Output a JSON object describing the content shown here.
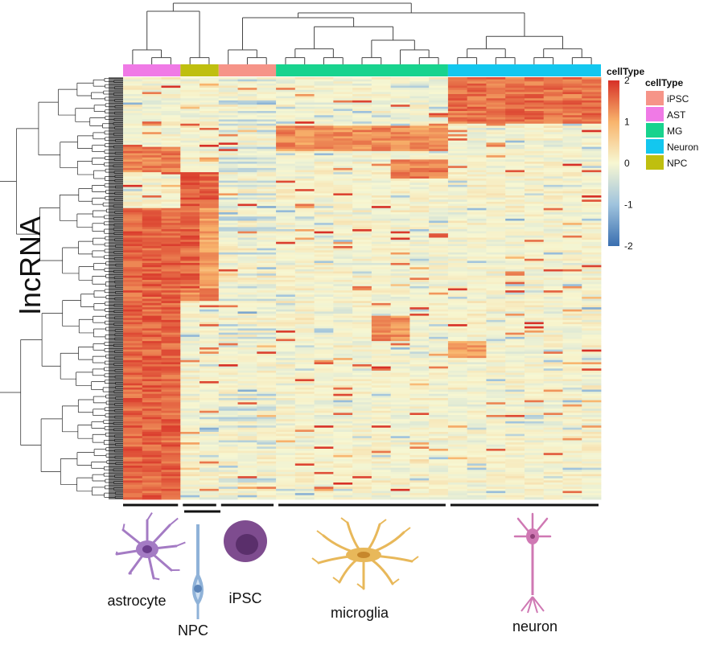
{
  "chart_data": {
    "type": "heatmap",
    "ylabel": "lncRNA",
    "color_scale": {
      "title": "cellType",
      "ticks": [
        "2",
        "1",
        "0",
        "-1",
        "-2"
      ],
      "range": [
        -2,
        2
      ],
      "colors": [
        "#3a6fb0",
        "#9fc3dd",
        "#f7f7d2",
        "#f8b46c",
        "#d73027"
      ]
    },
    "annotation": {
      "title": "cellType",
      "categories": [
        {
          "name": "iPSC",
          "color": "#f69488"
        },
        {
          "name": "AST",
          "color": "#f07ae6"
        },
        {
          "name": "MG",
          "color": "#18d38e"
        },
        {
          "name": "Neuron",
          "color": "#13c7ef"
        },
        {
          "name": "NPC",
          "color": "#bfbf0f"
        }
      ]
    },
    "column_groups": [
      {
        "type": "AST",
        "n": 3
      },
      {
        "type": "NPC",
        "n": 2
      },
      {
        "type": "iPSC",
        "n": 3
      },
      {
        "type": "MG",
        "n": 9
      },
      {
        "type": "Neuron",
        "n": 8
      }
    ],
    "cell_type_labels": [
      "astrocyte",
      "NPC",
      "iPSC",
      "microglia",
      "neuron"
    ],
    "rows_drawn": 200,
    "blocks": [
      {
        "rows": [
          62,
          124
        ],
        "cols": [
          0,
          2
        ],
        "value": 1.9
      },
      {
        "rows": [
          124,
          200
        ],
        "cols": [
          0,
          2
        ],
        "value": 1.9
      },
      {
        "rows": [
          33,
          45
        ],
        "cols": [
          0,
          2
        ],
        "value": 1.7
      },
      {
        "rows": [
          45,
          62
        ],
        "cols": [
          3,
          4
        ],
        "value": 1.9
      },
      {
        "rows": [
          62,
          100
        ],
        "cols": [
          3,
          3
        ],
        "value": 1.9
      },
      {
        "rows": [
          62,
          100
        ],
        "cols": [
          4,
          4
        ],
        "value": 1.4
      },
      {
        "rows": [
          100,
          106
        ],
        "cols": [
          3,
          4
        ],
        "value": 1.6
      },
      {
        "rows": [
          23,
          35
        ],
        "cols": [
          8,
          16
        ],
        "value": 1.6
      },
      {
        "rows": [
          0,
          22
        ],
        "cols": [
          17,
          24
        ],
        "value": 1.8
      },
      {
        "rows": [
          39,
          48
        ],
        "cols": [
          14,
          16
        ],
        "value": 1.7
      },
      {
        "rows": [
          113,
          125
        ],
        "cols": [
          13,
          14
        ],
        "value": 1.6
      },
      {
        "rows": [
          125,
          133
        ],
        "cols": [
          17,
          18
        ],
        "value": 1.4
      }
    ]
  }
}
